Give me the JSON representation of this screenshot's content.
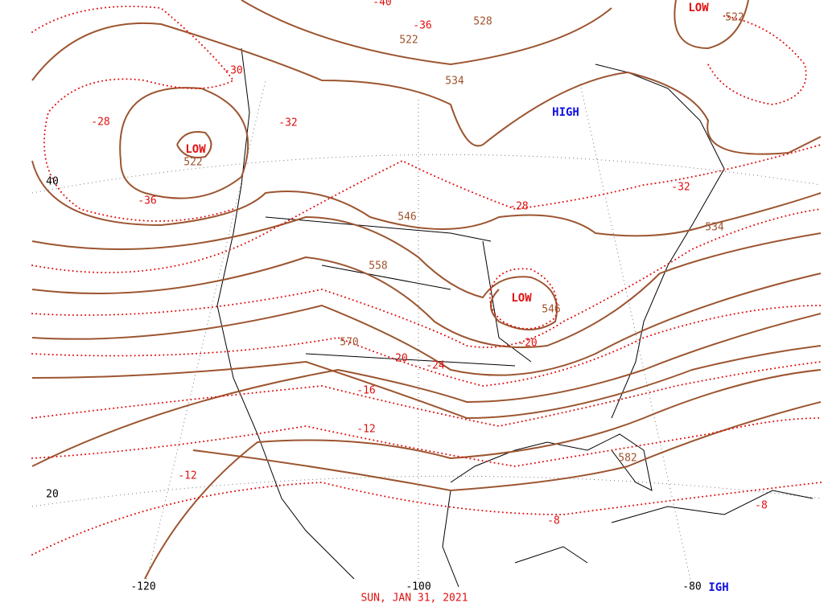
{
  "map": {
    "heights": [
      "522",
      "528",
      "522",
      "534",
      "522",
      "546",
      "534",
      "558",
      "546",
      "570",
      "582"
    ],
    "temperatures": [
      "-40",
      "-36",
      "-30",
      "-28",
      "-32",
      "-36",
      "-32",
      "-28",
      "-20",
      "-24",
      "-20",
      "-16",
      "-12",
      "-12",
      "-8",
      "-8"
    ],
    "lows": [
      "LOW",
      "LOW",
      "LOW"
    ],
    "highs": [
      "HIGH",
      "IGH"
    ],
    "latitudes": [
      "40",
      "20"
    ],
    "longitudes": [
      "-120",
      "-100",
      "-80"
    ],
    "valid_time": "SUN, JAN 31, 2021"
  }
}
